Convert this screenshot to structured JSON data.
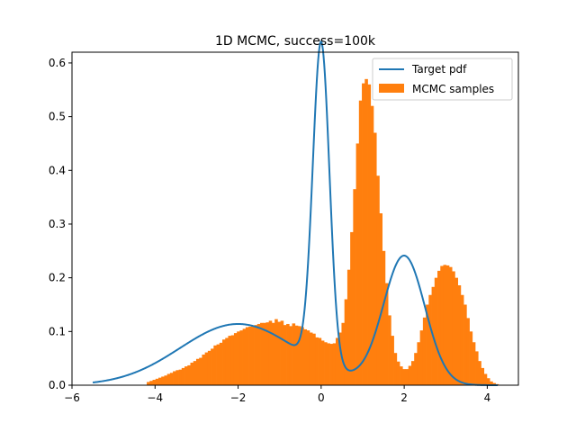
{
  "chart_data": {
    "type": "histogram_with_line",
    "title": "1D MCMC, success=100k",
    "xlabel": "",
    "ylabel": "",
    "xlim": [
      -6.0,
      4.75
    ],
    "ylim": [
      0.0,
      0.62
    ],
    "xticks": [
      -6,
      -4,
      -2,
      0,
      2,
      4
    ],
    "yticks": [
      0.0,
      0.1,
      0.2,
      0.3,
      0.4,
      0.5,
      0.6
    ],
    "grid": false,
    "legend_position": "top-right",
    "series": [
      {
        "name": "Target pdf",
        "kind": "line",
        "color": "#1f77b4",
        "x_range": [
          -5.5,
          4.25
        ],
        "components": [
          {
            "weight": 0.4,
            "mean": -2.0,
            "sd": 1.4
          },
          {
            "weight": 0.3,
            "mean": 0.0,
            "sd": 0.2
          },
          {
            "weight": 0.3,
            "mean": 2.0,
            "sd": 0.5
          }
        ]
      },
      {
        "name": "MCMC samples",
        "kind": "histogram",
        "color": "#ff7f0e",
        "bin_start": -4.2,
        "bin_width": 0.07,
        "densities": [
          0.006,
          0.008,
          0.01,
          0.012,
          0.014,
          0.016,
          0.018,
          0.021,
          0.023,
          0.026,
          0.028,
          0.029,
          0.032,
          0.035,
          0.037,
          0.042,
          0.045,
          0.049,
          0.051,
          0.057,
          0.061,
          0.064,
          0.068,
          0.074,
          0.076,
          0.079,
          0.085,
          0.088,
          0.092,
          0.093,
          0.097,
          0.1,
          0.102,
          0.105,
          0.108,
          0.109,
          0.111,
          0.112,
          0.114,
          0.116,
          0.116,
          0.117,
          0.12,
          0.116,
          0.123,
          0.118,
          0.12,
          0.112,
          0.114,
          0.11,
          0.115,
          0.111,
          0.11,
          0.108,
          0.104,
          0.102,
          0.098,
          0.096,
          0.089,
          0.088,
          0.083,
          0.08,
          0.078,
          0.077,
          0.078,
          0.088,
          0.098,
          0.116,
          0.16,
          0.215,
          0.285,
          0.365,
          0.45,
          0.53,
          0.562,
          0.57,
          0.56,
          0.52,
          0.47,
          0.39,
          0.32,
          0.25,
          0.19,
          0.13,
          0.092,
          0.06,
          0.044,
          0.035,
          0.03,
          0.03,
          0.036,
          0.045,
          0.06,
          0.08,
          0.102,
          0.126,
          0.15,
          0.168,
          0.183,
          0.2,
          0.213,
          0.222,
          0.224,
          0.223,
          0.22,
          0.212,
          0.2,
          0.186,
          0.168,
          0.15,
          0.125,
          0.1,
          0.08,
          0.063,
          0.045,
          0.032,
          0.021,
          0.013,
          0.007,
          0.004,
          0.002
        ]
      }
    ]
  }
}
